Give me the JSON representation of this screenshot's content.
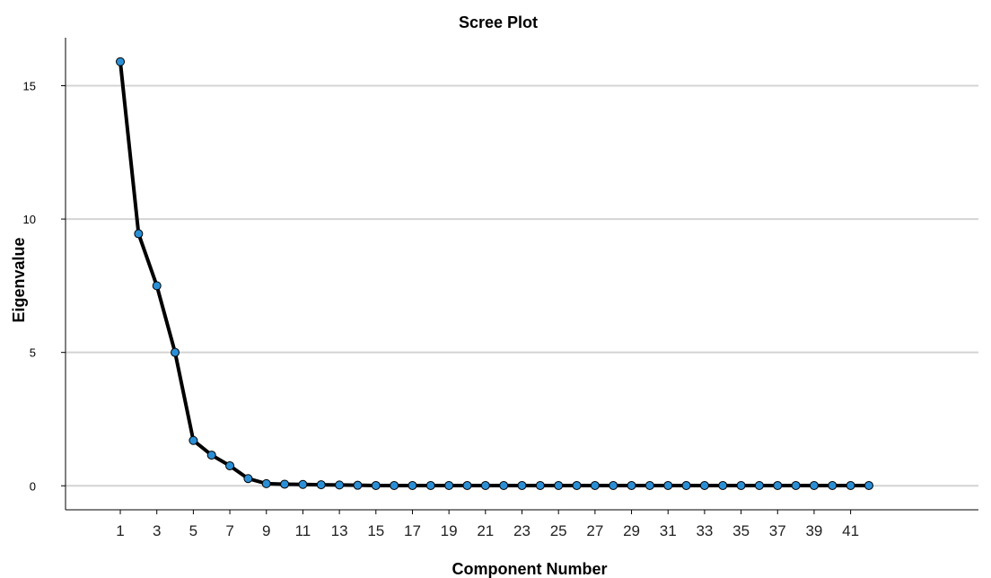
{
  "chart_data": {
    "type": "line",
    "title": "Scree Plot",
    "xlabel": "Component Number",
    "ylabel": "Eigenvalue",
    "x": [
      1,
      2,
      3,
      4,
      5,
      6,
      7,
      8,
      9,
      10,
      11,
      12,
      13,
      14,
      15,
      16,
      17,
      18,
      19,
      20,
      21,
      22,
      23,
      24,
      25,
      26,
      27,
      28,
      29,
      30,
      31,
      32,
      33,
      34,
      35,
      36,
      37,
      38,
      39,
      40,
      41,
      42
    ],
    "series": [
      {
        "values": [
          15.9,
          9.45,
          7.5,
          5.0,
          1.7,
          1.15,
          0.75,
          0.27,
          0.08,
          0.06,
          0.05,
          0.04,
          0.03,
          0.02,
          0.01,
          0.01,
          0.01,
          0.01,
          0.01,
          0.01,
          0.01,
          0.01,
          0.01,
          0.01,
          0.01,
          0.01,
          0.01,
          0.01,
          0.01,
          0.01,
          0.01,
          0.01,
          0.01,
          0.01,
          0.01,
          0.01,
          0.01,
          0.01,
          0.01,
          0.01,
          0.01,
          0.01
        ]
      }
    ],
    "xticks": [
      1,
      3,
      5,
      7,
      9,
      11,
      13,
      15,
      17,
      19,
      21,
      23,
      25,
      27,
      29,
      31,
      33,
      35,
      37,
      39,
      41
    ],
    "yticks": [
      0,
      5,
      10,
      15
    ],
    "xlim": [
      -2,
      48
    ],
    "ylim": [
      -0.9,
      16.8
    ],
    "grid": true,
    "colors": {
      "line": "#000000",
      "marker": "#2b8fd6",
      "grid": "#d4d4d4"
    }
  }
}
